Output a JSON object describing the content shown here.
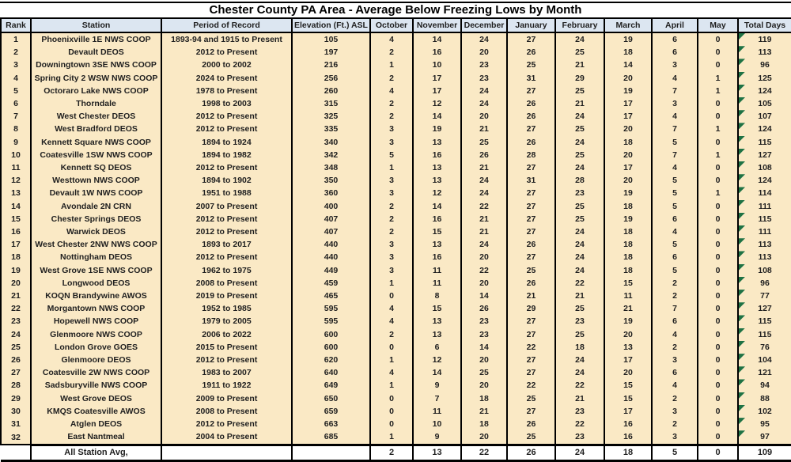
{
  "chart_data": {
    "type": "table",
    "title": "Chester County PA Area - Average Below Freezing Lows by Month",
    "columns": [
      "Rank",
      "Station",
      "Period of Record",
      "Elevation (Ft.) ASL",
      "October",
      "November",
      "December",
      "January",
      "February",
      "March",
      "April",
      "May",
      "Total Days"
    ],
    "rows": [
      [
        "1",
        "Phoenixville 1E NWS COOP",
        "1893-94 and 1915 to Present",
        "105",
        "4",
        "14",
        "24",
        "27",
        "24",
        "19",
        "6",
        "0",
        "119"
      ],
      [
        "2",
        "Devault DEOS",
        "2012 to Present",
        "197",
        "2",
        "16",
        "20",
        "26",
        "25",
        "18",
        "6",
        "0",
        "113"
      ],
      [
        "3",
        "Downingtown 3SE NWS COOP",
        "2000 to 2002",
        "216",
        "1",
        "10",
        "23",
        "25",
        "21",
        "14",
        "3",
        "0",
        "96"
      ],
      [
        "4",
        "Spring City 2 WSW NWS COOP",
        "2024 to Present",
        "256",
        "2",
        "17",
        "23",
        "31",
        "29",
        "20",
        "4",
        "1",
        "125"
      ],
      [
        "5",
        "Octoraro Lake NWS COOP",
        "1978 to Present",
        "260",
        "4",
        "17",
        "24",
        "27",
        "25",
        "19",
        "7",
        "1",
        "124"
      ],
      [
        "6",
        "Thorndale",
        "1998 to 2003",
        "315",
        "2",
        "12",
        "24",
        "26",
        "21",
        "17",
        "3",
        "0",
        "105"
      ],
      [
        "7",
        "West Chester DEOS",
        "2012 to Present",
        "325",
        "2",
        "14",
        "20",
        "26",
        "24",
        "17",
        "4",
        "0",
        "107"
      ],
      [
        "8",
        "West Bradford DEOS",
        "2012 to Present",
        "335",
        "3",
        "19",
        "21",
        "27",
        "25",
        "20",
        "7",
        "1",
        "124"
      ],
      [
        "9",
        "Kennett Square NWS COOP",
        "1894 to 1924",
        "340",
        "3",
        "13",
        "25",
        "26",
        "24",
        "18",
        "5",
        "0",
        "115"
      ],
      [
        "10",
        "Coatesville 1SW NWS COOP",
        "1894 to 1982",
        "342",
        "5",
        "16",
        "26",
        "28",
        "25",
        "20",
        "7",
        "1",
        "127"
      ],
      [
        "11",
        "Kennett SQ DEOS",
        "2012 to Present",
        "348",
        "1",
        "13",
        "21",
        "27",
        "24",
        "17",
        "4",
        "0",
        "108"
      ],
      [
        "12",
        "Westtown NWS COOP",
        "1894 to 1902",
        "350",
        "3",
        "13",
        "24",
        "31",
        "28",
        "20",
        "5",
        "0",
        "124"
      ],
      [
        "13",
        "Devault 1W NWS COOP",
        "1951 to 1988",
        "360",
        "3",
        "12",
        "24",
        "27",
        "23",
        "19",
        "5",
        "1",
        "114"
      ],
      [
        "14",
        "Avondale 2N CRN",
        "2007 to Present",
        "400",
        "2",
        "14",
        "22",
        "27",
        "25",
        "18",
        "5",
        "0",
        "111"
      ],
      [
        "15",
        "Chester Springs DEOS",
        "2012 to Present",
        "407",
        "2",
        "16",
        "21",
        "27",
        "25",
        "19",
        "6",
        "0",
        "115"
      ],
      [
        "16",
        "Warwick DEOS",
        "2012 to Present",
        "407",
        "2",
        "15",
        "21",
        "27",
        "24",
        "18",
        "4",
        "0",
        "111"
      ],
      [
        "17",
        "West Chester 2NW NWS COOP",
        "1893 to 2017",
        "440",
        "3",
        "13",
        "24",
        "26",
        "24",
        "18",
        "5",
        "0",
        "113"
      ],
      [
        "18",
        "Nottingham DEOS",
        "2012 to Present",
        "440",
        "3",
        "16",
        "20",
        "27",
        "24",
        "18",
        "6",
        "0",
        "113"
      ],
      [
        "19",
        "West Grove 1SE NWS COOP",
        "1962 to 1975",
        "449",
        "3",
        "11",
        "22",
        "25",
        "24",
        "18",
        "5",
        "0",
        "108"
      ],
      [
        "20",
        "Longwood DEOS",
        "2008 to Present",
        "459",
        "1",
        "11",
        "20",
        "26",
        "22",
        "15",
        "2",
        "0",
        "96"
      ],
      [
        "21",
        "KOQN Brandywine AWOS",
        "2019 to Present",
        "465",
        "0",
        "8",
        "14",
        "21",
        "21",
        "11",
        "2",
        "0",
        "77"
      ],
      [
        "22",
        "Morgantown NWS COOP",
        "1952 to 1985",
        "595",
        "4",
        "15",
        "26",
        "29",
        "25",
        "21",
        "7",
        "0",
        "127"
      ],
      [
        "23",
        "Hopewell NWS COOP",
        "1979 to 2005",
        "595",
        "4",
        "13",
        "23",
        "27",
        "23",
        "19",
        "6",
        "0",
        "115"
      ],
      [
        "24",
        "Glenmoore NWS COOP",
        "2006 to 2022",
        "600",
        "2",
        "13",
        "23",
        "27",
        "25",
        "20",
        "4",
        "0",
        "115"
      ],
      [
        "25",
        "London Grove GOES",
        "2015 to Present",
        "600",
        "0",
        "6",
        "14",
        "22",
        "18",
        "13",
        "2",
        "0",
        "76"
      ],
      [
        "26",
        "Glenmoore DEOS",
        "2012 to Present",
        "620",
        "1",
        "12",
        "20",
        "27",
        "24",
        "17",
        "3",
        "0",
        "104"
      ],
      [
        "27",
        "Coatesville 2W NWS COOP",
        "1983 to 2007",
        "640",
        "4",
        "14",
        "25",
        "27",
        "24",
        "20",
        "6",
        "0",
        "121"
      ],
      [
        "28",
        "Sadsburyville NWS COOP",
        "1911 to 1922",
        "649",
        "1",
        "9",
        "20",
        "22",
        "22",
        "15",
        "4",
        "0",
        "94"
      ],
      [
        "29",
        "West Grove DEOS",
        "2009 to Present",
        "650",
        "0",
        "7",
        "18",
        "25",
        "21",
        "15",
        "2",
        "0",
        "88"
      ],
      [
        "30",
        "KMQS Coatesville AWOS",
        "2008 to Present",
        "659",
        "0",
        "11",
        "21",
        "27",
        "23",
        "17",
        "3",
        "0",
        "102"
      ],
      [
        "31",
        "Atglen DEOS",
        "2012 to Present",
        "663",
        "0",
        "10",
        "18",
        "26",
        "22",
        "16",
        "2",
        "0",
        "95"
      ],
      [
        "32",
        "East Nantmeal",
        "2004 to Present",
        "685",
        "1",
        "9",
        "20",
        "25",
        "23",
        "16",
        "3",
        "0",
        "97"
      ]
    ],
    "footer_row": [
      "",
      "All Station Avg,",
      "",
      "",
      "2",
      "13",
      "22",
      "26",
      "24",
      "18",
      "5",
      "0",
      "109"
    ],
    "layout_hints": {
      "grid": "vertical column borders only, no horizontal row lines in body",
      "legend": "none",
      "error_indicator": "green corner triangle on every Total Days body cell"
    },
    "colors": {
      "header_bg": "#dce6f1",
      "body_row_bg": "#fae9c5",
      "footer_bg": "#ffffff",
      "border": "#000000",
      "text": "#1f1f1f",
      "error_indicator_green": "#1e7244"
    }
  }
}
